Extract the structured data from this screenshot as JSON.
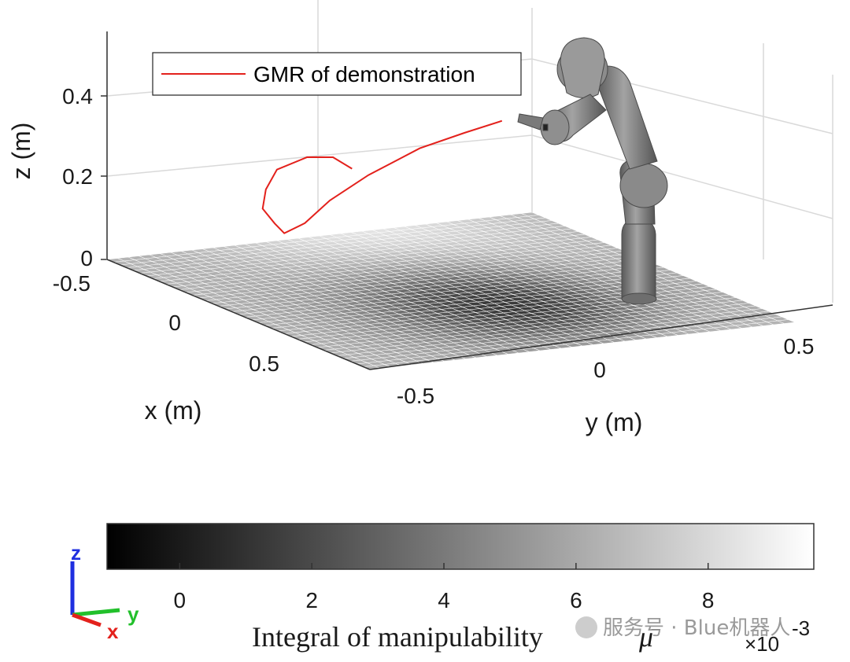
{
  "chart_data": [
    {
      "type": "surface3d",
      "title": "",
      "xlabel": "x (m)",
      "ylabel": "y (m)",
      "zlabel": "z (m)",
      "xlim": [
        -0.5,
        0.5
      ],
      "ylim": [
        -0.5,
        0.5
      ],
      "zlim": [
        0,
        0.5
      ],
      "x_ticks": [
        "-0.5",
        "0",
        "0.5"
      ],
      "y_ticks": [
        "-0.5",
        "0",
        "0.5"
      ],
      "z_ticks": [
        "0",
        "0.2",
        "0.4"
      ],
      "grid": true,
      "legend": {
        "placement": "top-left",
        "entries": [
          {
            "label": "GMR of demonstration",
            "color": "#e3211c"
          }
        ]
      },
      "series": [
        {
          "name": "GMR of demonstration",
          "color": "#e3211c",
          "type": "line3d",
          "points": [
            [
              -0.15,
              -0.14,
              0.28
            ],
            [
              -0.19,
              -0.16,
              0.3
            ],
            [
              -0.24,
              -0.19,
              0.29
            ],
            [
              -0.29,
              -0.23,
              0.25
            ],
            [
              -0.3,
              -0.25,
              0.2
            ],
            [
              -0.28,
              -0.27,
              0.16
            ],
            [
              -0.25,
              -0.26,
              0.13
            ],
            [
              -0.23,
              -0.25,
              0.11
            ],
            [
              -0.2,
              -0.22,
              0.14
            ],
            [
              -0.17,
              -0.18,
              0.2
            ],
            [
              -0.12,
              -0.12,
              0.27
            ],
            [
              -0.07,
              -0.03,
              0.34
            ],
            [
              -0.03,
              0.05,
              0.38
            ],
            [
              0.0,
              0.12,
              0.41
            ]
          ]
        }
      ],
      "surface": {
        "description_of_values": "manipulability integral over the xy plane",
        "grid_resolution": 40,
        "dark_center": [
          0.15,
          0.05
        ],
        "value_range": [
          -0.001,
          0.0095
        ]
      },
      "robot": {
        "type": "7-dof arm",
        "base": [
          0.45,
          0.35,
          0.0
        ],
        "color": "#7d7d7d"
      }
    },
    {
      "type": "colorbar",
      "orientation": "horizontal",
      "colormap": "gray",
      "label": "Integral of manipulability",
      "label_symbol": "μ̄",
      "range": [
        -0.0011,
        0.0096
      ],
      "ticks": [
        0,
        2,
        4,
        6,
        8
      ],
      "tick_labels": [
        "0",
        "2",
        "4",
        "6",
        "8"
      ],
      "exponent_label": "×10",
      "exponent": "-3"
    }
  ],
  "triad": {
    "z": "z",
    "y": "y",
    "x": "x",
    "colors": {
      "x": "#e3211c",
      "y": "#22c02b",
      "z": "#1f2fe0"
    }
  },
  "watermark": "服务号 · Blue机器人"
}
